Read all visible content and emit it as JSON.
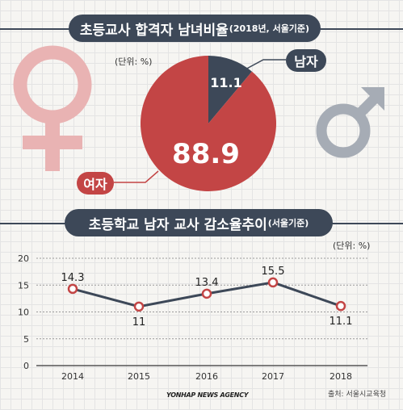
{
  "top_section": {
    "title_main": "초등교사 합격자 남녀비율",
    "title_sub": "(2018년, 서울기준)",
    "unit": "(단위: %)",
    "male_label": "남자",
    "female_label": "여자",
    "colors": {
      "female": "#c34545",
      "male": "#3d4858",
      "female_symbol": "#e9b3b3",
      "male_symbol": "#a6acb5"
    },
    "icons": [
      "female-symbol-icon",
      "male-symbol-icon"
    ]
  },
  "bottom_section": {
    "title_main": "초등학교 남자 교사 감소율추이",
    "title_sub": "(서울기준)",
    "unit": "(단위: %)"
  },
  "chart_data": [
    {
      "type": "pie",
      "categories": [
        "남자",
        "여자"
      ],
      "values": [
        11.1,
        88.9
      ],
      "data_labels": [
        "11.1",
        "88.9"
      ],
      "colors": [
        "#3d4858",
        "#c34545"
      ]
    },
    {
      "type": "line",
      "categories": [
        "2014",
        "2015",
        "2016",
        "2017",
        "2018"
      ],
      "series": [
        {
          "values": [
            14.3,
            11,
            13.4,
            15.5,
            11.1
          ]
        }
      ],
      "data_labels": [
        "14.3",
        "11",
        "13.4",
        "15.5",
        "11.1"
      ],
      "y_ticks": [
        "0",
        "5",
        "10",
        "15",
        "20"
      ],
      "ylim": [
        0,
        20
      ],
      "grid": true,
      "colors": {
        "line": "#3d4858",
        "marker": "#c34545"
      }
    }
  ],
  "footer": {
    "source": "출처: 서울시교육청",
    "agency": "YONHAP NEWS AGENCY"
  }
}
